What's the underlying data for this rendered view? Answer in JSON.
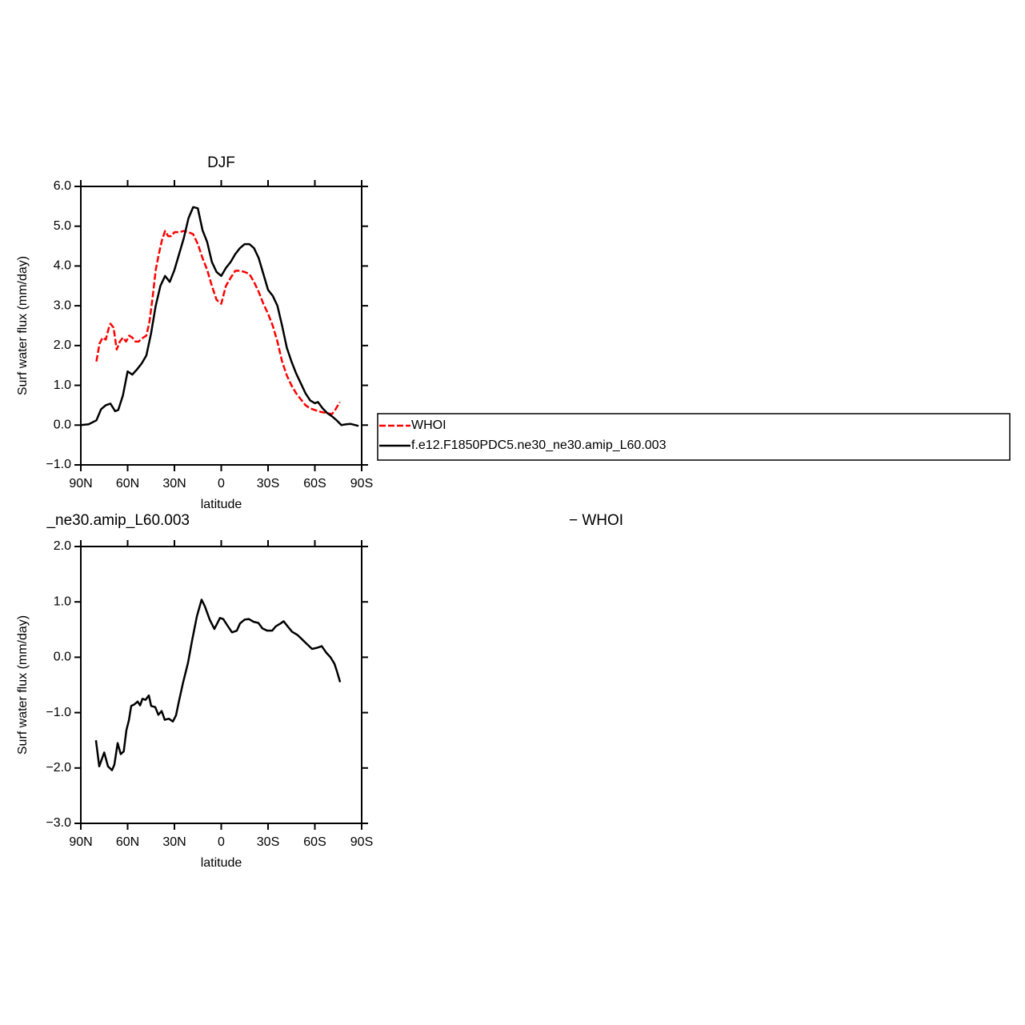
{
  "chart_data": [
    {
      "type": "line",
      "title": "DJF",
      "xlabel": "latitude",
      "ylabel": "Surf water flux (mm/day)",
      "xlim": [
        90,
        -90
      ],
      "ylim": [
        -1,
        6
      ],
      "xticks": [
        {
          "value": 90,
          "label": "90N"
        },
        {
          "value": 60,
          "label": "60N"
        },
        {
          "value": 30,
          "label": "30N"
        },
        0,
        {
          "value": -30,
          "label": "30S"
        },
        {
          "value": -60,
          "label": "60S"
        },
        {
          "value": -90,
          "label": "90S"
        }
      ],
      "yticks": [
        {
          "value": -1,
          "label": "−1.0"
        },
        {
          "value": 0,
          "label": "0.0"
        },
        {
          "value": 1,
          "label": "1.0"
        },
        {
          "value": 2,
          "label": "2.0"
        },
        {
          "value": 3,
          "label": "3.0"
        },
        {
          "value": 4,
          "label": "4.0"
        },
        {
          "value": 5,
          "label": "5.0"
        },
        {
          "value": 6,
          "label": "6.0"
        }
      ],
      "legend": true,
      "series": [
        {
          "name": "WHOI",
          "color": "#ff0000",
          "dashed": true,
          "x": [
            80,
            78,
            76,
            74,
            72,
            71,
            69,
            67,
            65,
            63,
            61,
            59,
            57,
            55,
            53,
            50,
            48,
            46,
            44,
            42,
            40,
            38,
            36,
            34,
            32,
            30,
            27,
            24,
            21,
            18,
            15,
            12,
            9,
            6,
            3,
            0,
            -3,
            -6,
            -9,
            -12,
            -15,
            -18,
            -21,
            -24,
            -27,
            -30,
            -33,
            -36,
            -39,
            -42,
            -45,
            -48,
            -51,
            -54,
            -57,
            -60,
            -64,
            -68,
            -71,
            -73,
            -76
          ],
          "values": [
            1.6,
            2.05,
            2.2,
            2.15,
            2.45,
            2.55,
            2.45,
            1.9,
            2.1,
            2.2,
            2.1,
            2.25,
            2.2,
            2.1,
            2.1,
            2.2,
            2.25,
            2.6,
            3.2,
            3.9,
            4.3,
            4.65,
            4.88,
            4.75,
            4.75,
            4.85,
            4.85,
            4.88,
            4.85,
            4.8,
            4.55,
            4.2,
            3.9,
            3.5,
            3.15,
            3.05,
            3.5,
            3.7,
            3.88,
            3.88,
            3.85,
            3.8,
            3.6,
            3.35,
            3.05,
            2.8,
            2.5,
            2.1,
            1.6,
            1.25,
            1.0,
            0.8,
            0.65,
            0.5,
            0.42,
            0.38,
            0.33,
            0.3,
            0.28,
            0.38,
            0.58
          ]
        },
        {
          "name": "f.e12.F1850PDC5.ne30_ne30.amip_L60.003",
          "color": "#000000",
          "dashed": false,
          "x": [
            90,
            85,
            80,
            77,
            74,
            71,
            68,
            66,
            63,
            60,
            57,
            54,
            51,
            48,
            45,
            42,
            39,
            36,
            33,
            30,
            27,
            24,
            21,
            18,
            15,
            12,
            9,
            6,
            3,
            0,
            -3,
            -6,
            -9,
            -12,
            -15,
            -18,
            -21,
            -24,
            -27,
            -30,
            -33,
            -36,
            -39,
            -42,
            -45,
            -48,
            -51,
            -54,
            -57,
            -60,
            -62,
            -65,
            -68,
            -71,
            -74,
            -77,
            -80,
            -83,
            -86,
            -88
          ],
          "values": [
            0.0,
            0.02,
            0.12,
            0.4,
            0.5,
            0.54,
            0.35,
            0.38,
            0.75,
            1.35,
            1.27,
            1.4,
            1.55,
            1.75,
            2.3,
            3.0,
            3.5,
            3.75,
            3.6,
            3.9,
            4.3,
            4.7,
            5.2,
            5.48,
            5.45,
            4.9,
            4.6,
            4.1,
            3.85,
            3.75,
            3.95,
            4.1,
            4.3,
            4.45,
            4.55,
            4.55,
            4.45,
            4.2,
            3.8,
            3.4,
            3.25,
            3.0,
            2.5,
            1.95,
            1.6,
            1.3,
            1.05,
            0.8,
            0.62,
            0.55,
            0.58,
            0.42,
            0.3,
            0.22,
            0.12,
            0.0,
            0.02,
            0.03,
            0.0,
            -0.02
          ]
        }
      ]
    },
    {
      "type": "line",
      "title_parts": [
        "_ne30.amip_L60.003",
        "− WHOI"
      ],
      "xlabel": "latitude",
      "ylabel": "Surf water flux (mm/day)",
      "xlim": [
        90,
        -90
      ],
      "ylim": [
        -3,
        2
      ],
      "xticks": [
        {
          "value": 90,
          "label": "90N"
        },
        {
          "value": 60,
          "label": "60N"
        },
        {
          "value": 30,
          "label": "30N"
        },
        0,
        {
          "value": -30,
          "label": "30S"
        },
        {
          "value": -60,
          "label": "60S"
        },
        {
          "value": -90,
          "label": "90S"
        }
      ],
      "yticks": [
        {
          "value": -3,
          "label": "−3.0"
        },
        {
          "value": -2,
          "label": "−2.0"
        },
        {
          "value": -1,
          "label": "−1.0"
        },
        {
          "value": 0,
          "label": "0.0"
        },
        {
          "value": 1,
          "label": "1.0"
        },
        {
          "value": 2,
          "label": "2.0"
        }
      ],
      "legend": false,
      "series": [
        {
          "color": "#000000",
          "dashed": false,
          "x": [
            80.3,
            78.2,
            75,
            72.6,
            70,
            68.5,
            66.4,
            64.4,
            62.5,
            60.8,
            59.2,
            57.7,
            55.6,
            53.6,
            52,
            50.5,
            48.5,
            46.4,
            44.9,
            42.3,
            40.3,
            38.2,
            36.2,
            33.6,
            31,
            29,
            27,
            24.4,
            21.3,
            18.7,
            15.6,
            12.6,
            10.5,
            7.4,
            4.4,
            0.8,
            -1.3,
            -3.8,
            -6.9,
            -10,
            -12,
            -15,
            -17.7,
            -20.8,
            -23.8,
            -26.4,
            -29.5,
            -32.6,
            -35,
            -38,
            -40,
            -42.8,
            -45.4,
            -49,
            -53,
            -58.2,
            -61.3,
            -64.4,
            -67.4,
            -70,
            -72.6,
            -74.1,
            -76.2
          ],
          "values": [
            -1.5,
            -1.97,
            -1.72,
            -1.97,
            -2.04,
            -1.94,
            -1.55,
            -1.75,
            -1.7,
            -1.32,
            -1.14,
            -0.88,
            -0.85,
            -0.8,
            -0.87,
            -0.75,
            -0.77,
            -0.69,
            -0.88,
            -0.9,
            -1.04,
            -0.97,
            -1.13,
            -1.11,
            -1.16,
            -1.05,
            -0.78,
            -0.45,
            -0.1,
            0.3,
            0.74,
            1.04,
            0.92,
            0.68,
            0.51,
            0.71,
            0.69,
            0.58,
            0.45,
            0.48,
            0.61,
            0.68,
            0.69,
            0.64,
            0.62,
            0.52,
            0.48,
            0.48,
            0.56,
            0.61,
            0.65,
            0.55,
            0.46,
            0.4,
            0.29,
            0.15,
            0.17,
            0.2,
            0.08,
            0.0,
            -0.12,
            -0.25,
            -0.45
          ]
        }
      ]
    }
  ]
}
